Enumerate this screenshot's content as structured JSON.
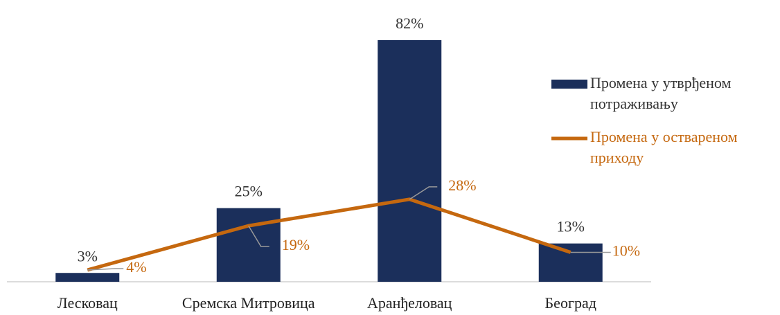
{
  "chart_data": {
    "type": "bar",
    "categories": [
      "Лесковац",
      "Сремска Митровица",
      "Аранђеловац",
      "Београд"
    ],
    "series": [
      {
        "name": "Промена у утврђеном потраживању",
        "type": "bar",
        "color": "#1b2f5b",
        "values": [
          3,
          25,
          82,
          13
        ],
        "value_labels": [
          "3%",
          "25%",
          "82%",
          "13%"
        ]
      },
      {
        "name": "Промена у оствареном приходу",
        "type": "line",
        "color": "#c5680f",
        "values": [
          4,
          19,
          28,
          10
        ],
        "value_labels": [
          "4%",
          "19%",
          "28%",
          "10%"
        ]
      }
    ],
    "legend": "right"
  }
}
